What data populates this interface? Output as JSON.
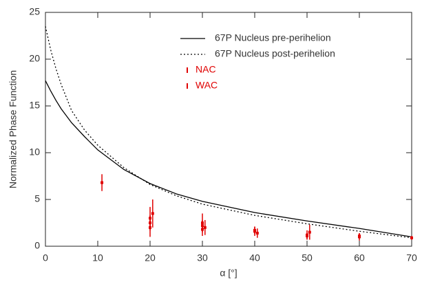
{
  "chart_data": {
    "type": "line",
    "x_label": "α [°]",
    "y_label": "Normalized Phase Function",
    "xlim": [
      0,
      70
    ],
    "xticks": [
      0,
      10,
      20,
      30,
      40,
      50,
      60,
      70
    ],
    "ylim": [
      0,
      25
    ],
    "yticks": [
      0,
      5,
      10,
      15,
      20,
      25
    ],
    "legend": "upper right",
    "series": [
      {
        "name": "67P Nucleus pre-perihelion",
        "color": "#000000",
        "style": "solid",
        "x": [
          0,
          1,
          2,
          3,
          5,
          7.5,
          10,
          15,
          20,
          25,
          30,
          40,
          50,
          60,
          70
        ],
        "values": [
          17.7,
          16.6,
          15.6,
          14.7,
          13.2,
          11.7,
          10.3,
          8.2,
          6.7,
          5.6,
          4.8,
          3.6,
          2.7,
          1.9,
          1.0
        ]
      },
      {
        "name": "67P Nucleus post-perihelion",
        "color": "#000000",
        "style": "dotted",
        "x": [
          0,
          1,
          2,
          3,
          5,
          7.5,
          10,
          15,
          20,
          25,
          30,
          40,
          50,
          60,
          70
        ],
        "values": [
          23.5,
          21.0,
          19.0,
          17.3,
          14.5,
          12.4,
          10.8,
          8.4,
          6.6,
          5.4,
          4.5,
          3.3,
          2.4,
          1.6,
          0.9
        ]
      },
      {
        "name": "NAC",
        "color": "#e00000",
        "style": "errorbar",
        "x": [
          10.8,
          20,
          20,
          20.5,
          30,
          30,
          30.5,
          40,
          40.5,
          50,
          50.5,
          60,
          70
        ],
        "values": [
          6.8,
          3.0,
          2.0,
          3.5,
          2.5,
          1.8,
          2.0,
          1.6,
          1.4,
          1.2,
          1.5,
          1.0,
          0.9
        ],
        "errors": [
          0.9,
          1.2,
          1.0,
          1.5,
          1.0,
          0.7,
          0.8,
          0.5,
          0.5,
          0.5,
          0.8,
          0.4,
          0.2
        ]
      },
      {
        "name": "WAC",
        "color": "#e00000",
        "style": "errorbar",
        "x": [
          20,
          30,
          40,
          50,
          60
        ],
        "values": [
          2.5,
          2.2,
          1.7,
          1.1,
          1.1
        ],
        "errors": [
          0.8,
          0.6,
          0.4,
          0.3,
          0.3
        ]
      }
    ]
  }
}
